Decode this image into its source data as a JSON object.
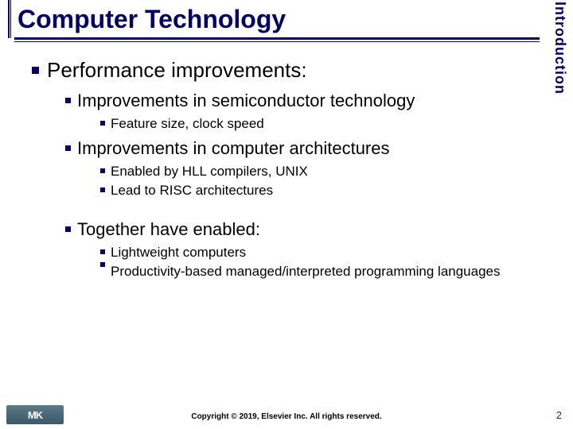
{
  "slide": {
    "title": "Computer Technology",
    "sidebar_label": "Introduction",
    "copyright": "Copyright © 2019, Elsevier Inc. All rights reserved.",
    "page_number": "2",
    "logo_text": "MK",
    "colors": {
      "accent": "#000066",
      "pagenum": "#7a0e2e",
      "logo_bg_top": "#5a7a8a",
      "logo_bg_bottom": "#3a5a6a",
      "background": "#ffffff",
      "text": "#000000"
    }
  },
  "outline": {
    "l1_0": "Performance improvements:",
    "l2_0": "Improvements in semiconductor technology",
    "l3_0": "Feature size, clock speed",
    "l2_1": "Improvements in computer architectures",
    "l3_1": "Enabled by HLL compilers, UNIX",
    "l3_2": "Lead to RISC architectures",
    "l2_2": "Together have enabled:",
    "l3_3": "Lightweight computers",
    "l3_4": "Productivity-based managed/interpreted programming languages"
  }
}
